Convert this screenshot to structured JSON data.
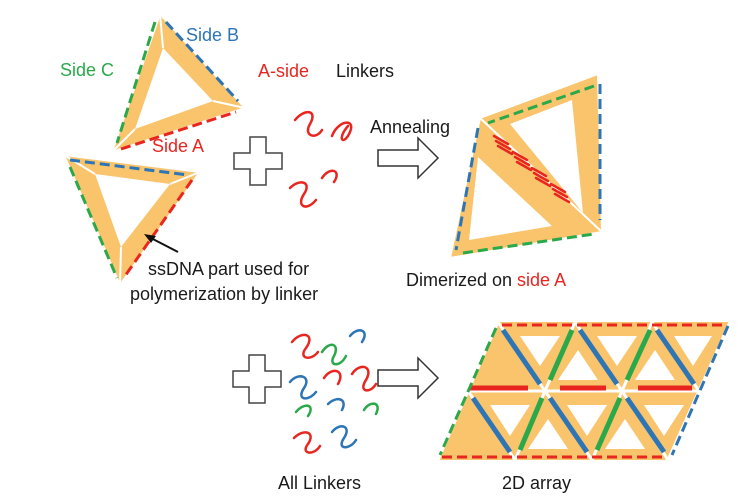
{
  "labels": {
    "side_b": "Side B",
    "side_c": "Side C",
    "side_a": "Side A",
    "a_side": "A-side",
    "linkers": "Linkers",
    "annealing": "Annealing",
    "ssdna_line1": "ssDNA part used for",
    "ssdna_line2": "polymerization by linker",
    "dimerized_prefix": "Dimerized on ",
    "dimerized_highlight": "side A",
    "all_linkers": "All Linkers",
    "array_2d": "2D array"
  },
  "colors": {
    "triangle_fill": "#f9c46b",
    "side_a": "#e8261f",
    "side_b": "#2e75b6",
    "side_c": "#2aa84a",
    "text": "#1a1a1a",
    "arrow_outline": "#333333"
  }
}
